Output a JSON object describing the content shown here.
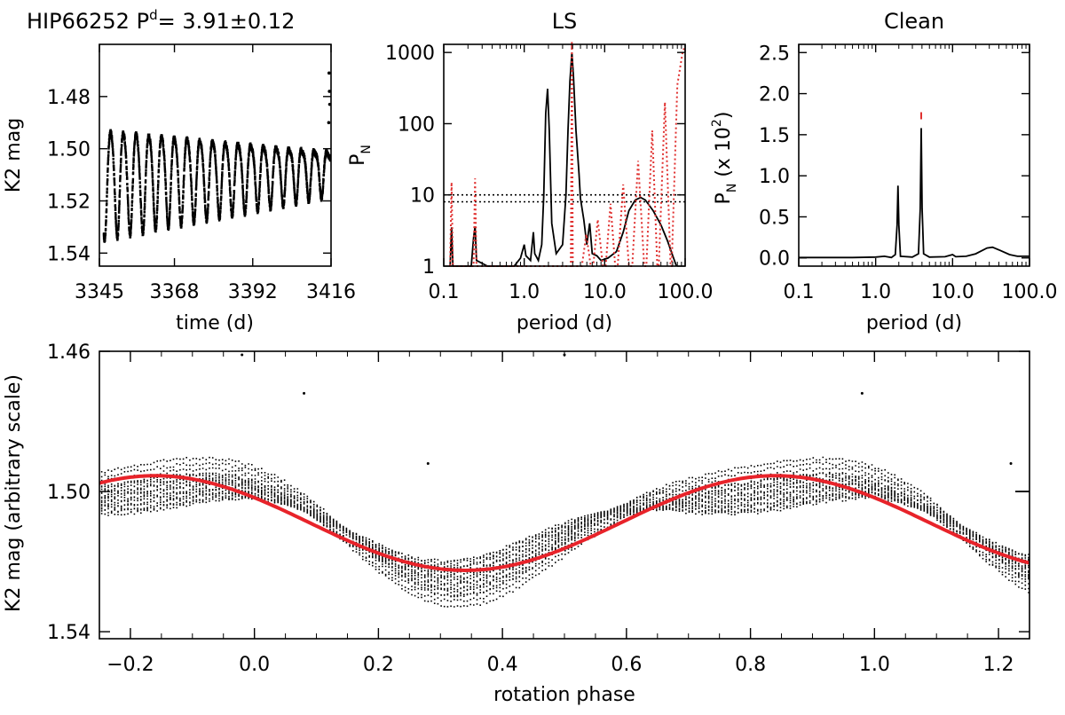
{
  "chart_data": [
    {
      "id": "lightcurve",
      "type": "scatter",
      "title": "HIP66252",
      "title_period": {
        "base": "P",
        "superscript": "d",
        "equals": "=",
        "value": "3.91±0.12"
      },
      "xlabel": "time (d)",
      "ylabel": "K2 mag",
      "xlim": [
        3345,
        3416
      ],
      "ylim": [
        1.545,
        1.46
      ],
      "x_ticks": [
        3345,
        3368,
        3392,
        3416
      ],
      "x_tick_labels": [
        "3345",
        "3368",
        "3392",
        "3416"
      ],
      "y_ticks": [
        1.48,
        1.5,
        1.52,
        1.54
      ],
      "y_tick_labels": [
        "1.48",
        "1.50",
        "1.52",
        "1.54"
      ],
      "model": {
        "period": 3.91,
        "t0": 3346.0,
        "mean_start": 1.512,
        "mean_end": 1.508,
        "amp_start": 0.021,
        "amp_end": 0.008,
        "cadence_d": 0.0204
      }
    },
    {
      "id": "ls",
      "type": "line",
      "title": "LS",
      "xlabel": "period (d)",
      "ylabel": {
        "base": "P",
        "subscript": "N"
      },
      "x_scale": "log",
      "y_scale": "log",
      "xlim": [
        0.1,
        100
      ],
      "ylim": [
        1,
        1300
      ],
      "x_ticks": [
        0.1,
        1,
        10,
        100
      ],
      "x_tick_labels": [
        "0.1",
        "1.0",
        "10.0",
        "100.0"
      ],
      "y_ticks": [
        1,
        10,
        100,
        1000
      ],
      "y_tick_labels": [
        "1",
        "10",
        "100",
        "1000"
      ],
      "threshold_lines": [
        10,
        8
      ],
      "series": [
        {
          "name": "periodogram",
          "color": "#000000",
          "points": [
            [
              0.12,
              1
            ],
            [
              0.125,
              3.5
            ],
            [
              0.13,
              1
            ],
            [
              0.22,
              1
            ],
            [
              0.235,
              2.5
            ],
            [
              0.245,
              3.6
            ],
            [
              0.255,
              1.2
            ],
            [
              0.35,
              1
            ],
            [
              0.6,
              1
            ],
            [
              0.75,
              1
            ],
            [
              0.9,
              1.3
            ],
            [
              1.0,
              2
            ],
            [
              1.05,
              1.4
            ],
            [
              1.2,
              1.2
            ],
            [
              1.3,
              3
            ],
            [
              1.35,
              1.5
            ],
            [
              1.5,
              1.2
            ],
            [
              1.65,
              2
            ],
            [
              1.75,
              10
            ],
            [
              1.85,
              140
            ],
            [
              1.95,
              310
            ],
            [
              2.05,
              80
            ],
            [
              2.2,
              4
            ],
            [
              2.5,
              1.5
            ],
            [
              3.0,
              2
            ],
            [
              3.3,
              10
            ],
            [
              3.5,
              80
            ],
            [
              3.7,
              400
            ],
            [
              3.91,
              1000
            ],
            [
              4.1,
              450
            ],
            [
              4.4,
              80
            ],
            [
              4.8,
              20
            ],
            [
              5.0,
              9
            ],
            [
              5.5,
              4.5
            ],
            [
              6.0,
              2
            ],
            [
              6.5,
              4
            ],
            [
              7.0,
              1.5
            ],
            [
              8,
              1.4
            ],
            [
              9,
              1.2
            ],
            [
              11,
              1.3
            ],
            [
              14,
              1.6
            ],
            [
              17,
              3
            ],
            [
              20,
              6
            ],
            [
              24,
              8.5
            ],
            [
              28,
              9.2
            ],
            [
              32,
              8.5
            ],
            [
              40,
              6
            ],
            [
              50,
              3.8
            ],
            [
              60,
              2.3
            ],
            [
              70,
              1.4
            ],
            [
              78,
              1
            ]
          ]
        },
        {
          "name": "window",
          "color": "#e0302f",
          "dotted": true,
          "points": [
            [
              0.12,
              1
            ],
            [
              0.125,
              15
            ],
            [
              0.13,
              1
            ],
            [
              0.235,
              1
            ],
            [
              0.245,
              17
            ],
            [
              0.255,
              1
            ],
            [
              3.8,
              1
            ],
            [
              3.91,
              1300
            ],
            [
              4.02,
              1
            ],
            [
              5.2,
              1
            ],
            [
              5.9,
              2.8
            ],
            [
              6.7,
              1
            ],
            [
              7.2,
              1
            ],
            [
              8.2,
              4.5
            ],
            [
              9.5,
              1
            ],
            [
              10.3,
              1
            ],
            [
              11.8,
              7.5
            ],
            [
              13.5,
              1
            ],
            [
              14.5,
              1
            ],
            [
              17,
              14
            ],
            [
              20,
              1
            ],
            [
              22,
              1
            ],
            [
              26,
              30
            ],
            [
              31,
              1
            ],
            [
              33,
              1
            ],
            [
              39,
              80
            ],
            [
              45,
              1
            ],
            [
              47,
              1
            ],
            [
              56,
              200
            ],
            [
              66,
              1
            ],
            [
              68,
              1
            ],
            [
              80,
              350
            ],
            [
              93,
              1000
            ],
            [
              99,
              1200
            ]
          ]
        }
      ],
      "peak_marker": {
        "x": 3.91,
        "y": 1250,
        "color": "#e0302f"
      }
    },
    {
      "id": "clean",
      "type": "line",
      "title": "Clean",
      "xlabel": "period (d)",
      "ylabel": {
        "base": "P",
        "subscript": "N",
        "suffix_open": " (x 10",
        "superscript": "2",
        "suffix_close": ")"
      },
      "x_scale": "log",
      "xlim": [
        0.1,
        100
      ],
      "ylim": [
        -0.1,
        2.6
      ],
      "x_ticks": [
        0.1,
        1,
        10,
        100
      ],
      "x_tick_labels": [
        "0.1",
        "1.0",
        "10.0",
        "100.0"
      ],
      "y_ticks": [
        0.0,
        0.5,
        1.0,
        1.5,
        2.0,
        2.5
      ],
      "y_tick_labels": [
        "0.0",
        "0.5",
        "1.0",
        "1.5",
        "2.0",
        "2.5"
      ],
      "series": [
        {
          "name": "clean periodogram",
          "color": "#000000",
          "points": [
            [
              0.1,
              0.005
            ],
            [
              0.5,
              0.005
            ],
            [
              1.0,
              0.01
            ],
            [
              1.3,
              0.02
            ],
            [
              1.6,
              0.005
            ],
            [
              1.8,
              0.04
            ],
            [
              1.9,
              0.4
            ],
            [
              1.95,
              0.88
            ],
            [
              2.0,
              0.4
            ],
            [
              2.1,
              0.02
            ],
            [
              3.0,
              0.01
            ],
            [
              3.6,
              0.05
            ],
            [
              3.8,
              0.6
            ],
            [
              3.91,
              1.58
            ],
            [
              4.02,
              0.6
            ],
            [
              4.2,
              0.05
            ],
            [
              5,
              0.01
            ],
            [
              8,
              0.015
            ],
            [
              10,
              0.04
            ],
            [
              11,
              0.015
            ],
            [
              15,
              0.02
            ],
            [
              20,
              0.05
            ],
            [
              28,
              0.12
            ],
            [
              33,
              0.13
            ],
            [
              42,
              0.09
            ],
            [
              55,
              0.04
            ],
            [
              70,
              0.02
            ],
            [
              100,
              0.02
            ]
          ]
        }
      ],
      "peak_marker": {
        "x": 3.91,
        "y": 1.72,
        "color": "#e0302f"
      }
    },
    {
      "id": "phased",
      "type": "scatter",
      "xlabel": "rotation phase",
      "ylabel": "K2 mag (arbitrary scale)",
      "xlim": [
        -0.25,
        1.25
      ],
      "ylim": [
        1.542,
        1.46
      ],
      "x_ticks": [
        -0.2,
        0.0,
        0.2,
        0.4,
        0.6,
        0.8,
        1.0,
        1.2
      ],
      "x_tick_labels": [
        "−0.2",
        "0.0",
        "0.2",
        "0.4",
        "0.6",
        "0.8",
        "1.0",
        "1.2"
      ],
      "y_ticks": [
        1.46,
        1.5,
        1.54
      ],
      "y_tick_labels": [
        "1.46",
        "1.50",
        "1.54"
      ],
      "right_marker_y": 1.5,
      "fit": {
        "name": "sinusoidal fit",
        "color": "#e8232a",
        "mean": 1.509,
        "amplitude": 0.0135,
        "phase_of_min": 0.34
      },
      "data_model": {
        "cycles": 18,
        "points_per_cycle": 190,
        "amp_start": 0.019,
        "amp_end": 0.007
      }
    }
  ]
}
